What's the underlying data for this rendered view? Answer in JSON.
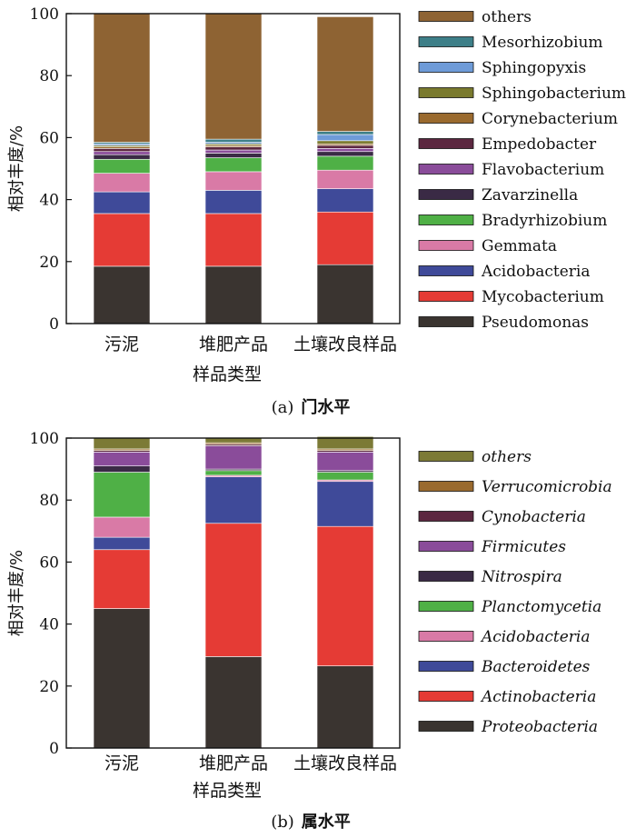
{
  "colors": {
    "Pseudomonas": "#3a3430",
    "Mycobacterium": "#e53b35",
    "Acidobacteria": "#3f4a99",
    "Gemmata": "#d97aa6",
    "Bradyrhizobium": "#4fb046",
    "Zavarzinella": "#3a2a45",
    "Flavobacterium": "#8a4c9a",
    "Empedobacter": "#5c2740",
    "Corynebacterium": "#9a6a2e",
    "Sphingobacterium": "#7a7a2e",
    "Sphingopyxis": "#6e9bd8",
    "Mesorhizobium": "#3d7f88",
    "others_a": "#8e6333",
    "Proteobacteria": "#3a3430",
    "Actinobacteria": "#e53b35",
    "Bacteroidetes": "#3f4a99",
    "Acidobacteria_b": "#d97aa6",
    "Planctomycetia": "#4fb046",
    "Nitrospira": "#3a2a45",
    "Firmicutes": "#8a4c9a",
    "Cynobacteria": "#5c2740",
    "Verrucomicrobia": "#9a6a2e",
    "others_b": "#7c7a36"
  },
  "chart_data": [
    {
      "type": "bar",
      "stacked": true,
      "caption_prefix": "(a)",
      "caption": "门水平",
      "xlabel": "样品类型",
      "ylabel": "相对丰度/%",
      "ylim": [
        0,
        100
      ],
      "yticks": [
        0,
        20,
        40,
        60,
        80,
        100
      ],
      "categories": [
        "污泥",
        "堆肥产品",
        "土壤改良样品"
      ],
      "legend_italic": false,
      "series": [
        {
          "name": "Pseudomonas",
          "color_key": "Pseudomonas",
          "values": [
            18.5,
            18.5,
            19.0
          ]
        },
        {
          "name": "Mycobacterium",
          "color_key": "Mycobacterium",
          "values": [
            17.0,
            17.0,
            17.0
          ]
        },
        {
          "name": "Acidobacteria",
          "color_key": "Acidobacteria",
          "values": [
            7.0,
            7.5,
            7.5
          ]
        },
        {
          "name": "Gemmata",
          "color_key": "Gemmata",
          "values": [
            6.0,
            6.0,
            6.0
          ]
        },
        {
          "name": "Bradyrhizobium",
          "color_key": "Bradyrhizobium",
          "values": [
            4.5,
            4.5,
            4.5
          ]
        },
        {
          "name": "Zavarzinella",
          "color_key": "Zavarzinella",
          "values": [
            1.5,
            1.5,
            1.5
          ]
        },
        {
          "name": "Flavobacterium",
          "color_key": "Flavobacterium",
          "values": [
            1.0,
            1.0,
            1.0
          ]
        },
        {
          "name": "Empedobacter",
          "color_key": "Empedobacter",
          "values": [
            1.0,
            1.0,
            1.0
          ]
        },
        {
          "name": "Corynebacterium",
          "color_key": "Corynebacterium",
          "values": [
            0.5,
            0.5,
            0.5
          ]
        },
        {
          "name": "Sphingobacterium",
          "color_key": "Sphingobacterium",
          "values": [
            0.5,
            0.5,
            1.0
          ]
        },
        {
          "name": "Sphingopyxis",
          "color_key": "Sphingopyxis",
          "values": [
            0.5,
            0.5,
            2.0
          ]
        },
        {
          "name": "Mesorhizobium",
          "color_key": "Mesorhizobium",
          "values": [
            0.5,
            1.0,
            1.0
          ]
        },
        {
          "name": "others",
          "color_key": "others_a",
          "values": [
            41.5,
            40.5,
            37.0
          ]
        }
      ]
    },
    {
      "type": "bar",
      "stacked": true,
      "caption_prefix": "(b)",
      "caption": "属水平",
      "xlabel": "样品类型",
      "ylabel": "相对丰度/%",
      "ylim": [
        0,
        100
      ],
      "yticks": [
        0,
        20,
        40,
        60,
        80,
        100
      ],
      "categories": [
        "污泥",
        "堆肥产品",
        "土壤改良样品"
      ],
      "legend_italic": true,
      "series": [
        {
          "name": "Proteobacteria",
          "color_key": "Proteobacteria",
          "values": [
            45.0,
            29.5,
            26.5
          ]
        },
        {
          "name": "Actinobacteria",
          "color_key": "Actinobacteria",
          "values": [
            19.0,
            43.0,
            45.0
          ]
        },
        {
          "name": "Bacteroidetes",
          "color_key": "Bacteroidetes",
          "values": [
            4.0,
            15.0,
            14.5
          ]
        },
        {
          "name": "Acidobacteria",
          "color_key": "Acidobacteria_b",
          "values": [
            6.5,
            0.5,
            0.5
          ]
        },
        {
          "name": "Planctomycetia",
          "color_key": "Planctomycetia",
          "values": [
            14.5,
            1.5,
            2.5
          ]
        },
        {
          "name": "Nitrospira",
          "color_key": "Nitrospira",
          "values": [
            2.0,
            0.5,
            0.5
          ]
        },
        {
          "name": "Firmicutes",
          "color_key": "Firmicutes",
          "values": [
            4.5,
            7.5,
            6.0
          ]
        },
        {
          "name": "Cynobacteria",
          "color_key": "Cynobacteria",
          "values": [
            0.5,
            0.5,
            0.5
          ]
        },
        {
          "name": "Verrucomicrobia",
          "color_key": "Verrucomicrobia",
          "values": [
            0.5,
            0.5,
            0.5
          ]
        },
        {
          "name": "others",
          "color_key": "others_b",
          "values": [
            3.5,
            1.5,
            4.0
          ]
        }
      ]
    }
  ]
}
